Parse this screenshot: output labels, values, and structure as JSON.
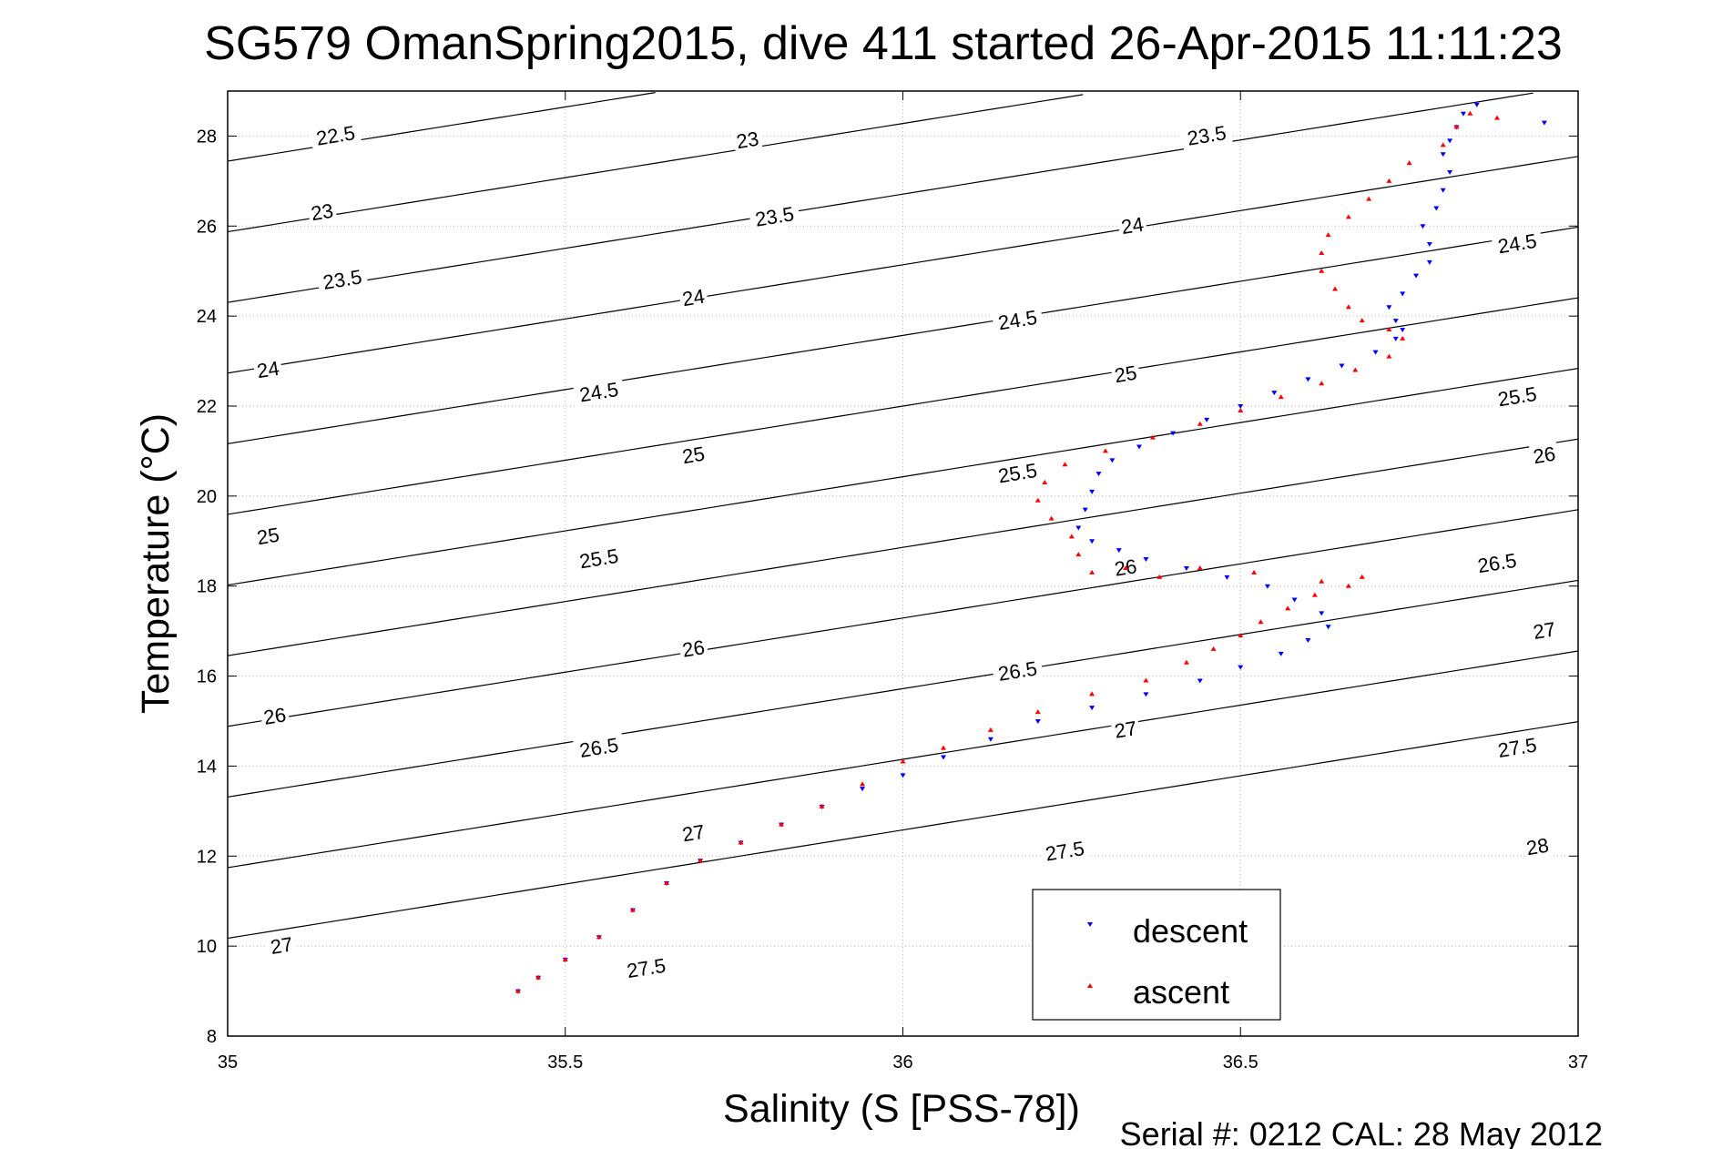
{
  "chart_data": {
    "type": "scatter",
    "title": "SG579 OmanSpring2015, dive 411 started 26-Apr-2015 11:11:23",
    "xlabel": "Salinity (S [PSS-78])",
    "ylabel": "Temperature (°C)",
    "xlim": [
      35,
      37
    ],
    "ylim": [
      8,
      29
    ],
    "xticks": [
      35,
      35.5,
      36,
      36.5,
      37
    ],
    "xtick_labels": [
      "35",
      "35.5",
      "36",
      "36.5",
      "37"
    ],
    "yticks": [
      8,
      10,
      12,
      14,
      16,
      18,
      20,
      22,
      24,
      26,
      28
    ],
    "ytick_labels": [
      "8",
      "10",
      "12",
      "14",
      "16",
      "18",
      "20",
      "22",
      "24",
      "26",
      "28"
    ],
    "grid": true,
    "legend_position": "bottom-right",
    "colors": {
      "descent": "#0000ff",
      "ascent": "#ff0000",
      "contour": "#000000"
    },
    "footer": "Serial #: 0212  CAL: 28 May 2012",
    "density_contours": {
      "levels": [
        22.5,
        23,
        23.5,
        24,
        24.5,
        25,
        25.5,
        26,
        26.5,
        27,
        27.5,
        28
      ],
      "labels": [
        {
          "text": "22.5",
          "s": 35.16,
          "t": 28.0
        },
        {
          "text": "23",
          "s": 35.14,
          "t": 26.3
        },
        {
          "text": "23.5",
          "s": 35.17,
          "t": 24.8
        },
        {
          "text": "24",
          "s": 35.06,
          "t": 22.8
        },
        {
          "text": "25",
          "s": 35.06,
          "t": 19.1
        },
        {
          "text": "26",
          "s": 35.07,
          "t": 15.1
        },
        {
          "text": "27",
          "s": 35.08,
          "t": 10.0
        },
        {
          "text": "23",
          "s": 35.77,
          "t": 27.9
        },
        {
          "text": "23.5",
          "s": 35.81,
          "t": 26.2
        },
        {
          "text": "24",
          "s": 35.69,
          "t": 24.4
        },
        {
          "text": "24.5",
          "s": 35.55,
          "t": 22.3
        },
        {
          "text": "25",
          "s": 35.69,
          "t": 20.9
        },
        {
          "text": "25.5",
          "s": 35.55,
          "t": 18.6
        },
        {
          "text": "26",
          "s": 35.69,
          "t": 16.6
        },
        {
          "text": "26.5",
          "s": 35.55,
          "t": 14.4
        },
        {
          "text": "27",
          "s": 35.69,
          "t": 12.5
        },
        {
          "text": "27.5",
          "s": 35.62,
          "t": 9.5
        },
        {
          "text": "23.5",
          "s": 36.45,
          "t": 28.0
        },
        {
          "text": "24",
          "s": 36.34,
          "t": 26.0
        },
        {
          "text": "24.5",
          "s": 36.17,
          "t": 23.9
        },
        {
          "text": "25",
          "s": 36.33,
          "t": 22.7
        },
        {
          "text": "25.5",
          "s": 36.17,
          "t": 20.5
        },
        {
          "text": "26",
          "s": 36.33,
          "t": 18.4
        },
        {
          "text": "26.5",
          "s": 36.17,
          "t": 16.1
        },
        {
          "text": "27",
          "s": 36.33,
          "t": 14.8
        },
        {
          "text": "27.5",
          "s": 36.24,
          "t": 12.1
        },
        {
          "text": "24.5",
          "s": 36.91,
          "t": 25.6
        },
        {
          "text": "25.5",
          "s": 36.91,
          "t": 22.2
        },
        {
          "text": "26",
          "s": 36.95,
          "t": 20.9
        },
        {
          "text": "26.5",
          "s": 36.88,
          "t": 18.5
        },
        {
          "text": "27",
          "s": 36.95,
          "t": 17.0
        },
        {
          "text": "27.5",
          "s": 36.91,
          "t": 14.4
        },
        {
          "text": "28",
          "s": 36.94,
          "t": 12.2
        }
      ]
    },
    "series": [
      {
        "name": "descent",
        "marker": "triangle-down",
        "color": "#0000ff",
        "points": [
          [
            35.43,
            9.0
          ],
          [
            35.46,
            9.3
          ],
          [
            35.5,
            9.7
          ],
          [
            35.55,
            10.2
          ],
          [
            35.6,
            10.8
          ],
          [
            35.65,
            11.4
          ],
          [
            35.7,
            11.9
          ],
          [
            35.76,
            12.3
          ],
          [
            35.82,
            12.7
          ],
          [
            35.88,
            13.1
          ],
          [
            35.94,
            13.5
          ],
          [
            36.0,
            13.8
          ],
          [
            36.06,
            14.2
          ],
          [
            36.13,
            14.6
          ],
          [
            36.2,
            15.0
          ],
          [
            36.28,
            15.3
          ],
          [
            36.36,
            15.6
          ],
          [
            36.44,
            15.9
          ],
          [
            36.5,
            16.2
          ],
          [
            36.56,
            16.5
          ],
          [
            36.6,
            16.8
          ],
          [
            36.63,
            17.1
          ],
          [
            36.62,
            17.4
          ],
          [
            36.58,
            17.7
          ],
          [
            36.54,
            18.0
          ],
          [
            36.48,
            18.2
          ],
          [
            36.42,
            18.4
          ],
          [
            36.36,
            18.6
          ],
          [
            36.32,
            18.8
          ],
          [
            36.28,
            19.0
          ],
          [
            36.26,
            19.3
          ],
          [
            36.27,
            19.7
          ],
          [
            36.28,
            20.1
          ],
          [
            36.29,
            20.5
          ],
          [
            36.31,
            20.8
          ],
          [
            36.35,
            21.1
          ],
          [
            36.4,
            21.4
          ],
          [
            36.45,
            21.7
          ],
          [
            36.5,
            22.0
          ],
          [
            36.55,
            22.3
          ],
          [
            36.6,
            22.6
          ],
          [
            36.65,
            22.9
          ],
          [
            36.7,
            23.2
          ],
          [
            36.73,
            23.5
          ],
          [
            36.74,
            23.7
          ],
          [
            36.73,
            23.9
          ],
          [
            36.72,
            24.2
          ],
          [
            36.74,
            24.5
          ],
          [
            36.76,
            24.9
          ],
          [
            36.78,
            25.2
          ],
          [
            36.78,
            25.6
          ],
          [
            36.77,
            26.0
          ],
          [
            36.79,
            26.4
          ],
          [
            36.8,
            26.8
          ],
          [
            36.81,
            27.2
          ],
          [
            36.8,
            27.6
          ],
          [
            36.81,
            27.9
          ],
          [
            36.82,
            28.2
          ],
          [
            36.83,
            28.5
          ],
          [
            36.85,
            28.7
          ],
          [
            36.95,
            28.3
          ]
        ]
      },
      {
        "name": "ascent",
        "marker": "triangle-up",
        "color": "#ff0000",
        "points": [
          [
            35.43,
            9.0
          ],
          [
            35.46,
            9.3
          ],
          [
            35.5,
            9.7
          ],
          [
            35.55,
            10.2
          ],
          [
            35.6,
            10.8
          ],
          [
            35.65,
            11.4
          ],
          [
            35.7,
            11.9
          ],
          [
            35.76,
            12.3
          ],
          [
            35.82,
            12.7
          ],
          [
            35.88,
            13.1
          ],
          [
            35.94,
            13.6
          ],
          [
            36.0,
            14.1
          ],
          [
            36.06,
            14.4
          ],
          [
            36.13,
            14.8
          ],
          [
            36.2,
            15.2
          ],
          [
            36.28,
            15.6
          ],
          [
            36.36,
            15.9
          ],
          [
            36.42,
            16.3
          ],
          [
            36.46,
            16.6
          ],
          [
            36.5,
            16.9
          ],
          [
            36.53,
            17.2
          ],
          [
            36.57,
            17.5
          ],
          [
            36.61,
            17.8
          ],
          [
            36.66,
            18.0
          ],
          [
            36.68,
            18.2
          ],
          [
            36.62,
            18.1
          ],
          [
            36.52,
            18.3
          ],
          [
            36.44,
            18.4
          ],
          [
            36.38,
            18.2
          ],
          [
            36.33,
            18.4
          ],
          [
            36.28,
            18.3
          ],
          [
            36.26,
            18.7
          ],
          [
            36.25,
            19.1
          ],
          [
            36.22,
            19.5
          ],
          [
            36.2,
            19.9
          ],
          [
            36.21,
            20.3
          ],
          [
            36.24,
            20.7
          ],
          [
            36.3,
            21.0
          ],
          [
            36.37,
            21.3
          ],
          [
            36.44,
            21.6
          ],
          [
            36.5,
            21.9
          ],
          [
            36.56,
            22.2
          ],
          [
            36.62,
            22.5
          ],
          [
            36.67,
            22.8
          ],
          [
            36.72,
            23.1
          ],
          [
            36.74,
            23.5
          ],
          [
            36.72,
            23.7
          ],
          [
            36.68,
            23.9
          ],
          [
            36.66,
            24.2
          ],
          [
            36.64,
            24.6
          ],
          [
            36.62,
            25.0
          ],
          [
            36.62,
            25.4
          ],
          [
            36.63,
            25.8
          ],
          [
            36.66,
            26.2
          ],
          [
            36.69,
            26.6
          ],
          [
            36.72,
            27.0
          ],
          [
            36.75,
            27.4
          ],
          [
            36.8,
            27.8
          ],
          [
            36.82,
            28.2
          ],
          [
            36.84,
            28.5
          ],
          [
            36.88,
            28.4
          ]
        ]
      }
    ]
  }
}
